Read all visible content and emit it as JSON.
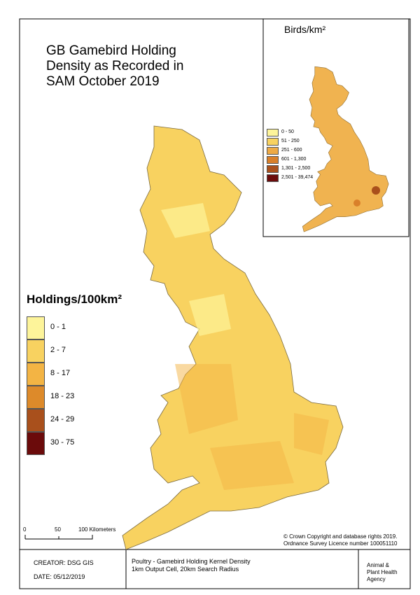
{
  "map": {
    "title": "GB Gamebird Holding Density as Recorded in SAM October 2019",
    "inset": {
      "title": "Birds/km²",
      "legend": [
        {
          "label": "0 - 50",
          "color": "#fdf49a"
        },
        {
          "label": "51 - 250",
          "color": "#f8d260"
        },
        {
          "label": "251 - 600",
          "color": "#eeaa45"
        },
        {
          "label": "601 - 1,300",
          "color": "#d9802a"
        },
        {
          "label": "1,301 - 2,500",
          "color": "#a9501c"
        },
        {
          "label": "2,501 - 39,474",
          "color": "#6b0b0b"
        }
      ]
    },
    "legend": {
      "title": "Holdings/100km²",
      "items": [
        {
          "label": "0 - 1",
          "color": "#fdf49a"
        },
        {
          "label": "2 - 7",
          "color": "#f8d260"
        },
        {
          "label": "8 - 17",
          "color": "#f3b444"
        },
        {
          "label": "18 - 23",
          "color": "#dd8a2a"
        },
        {
          "label": "24 - 29",
          "color": "#a9501c"
        },
        {
          "label": "30 - 75",
          "color": "#6b0b0b"
        }
      ]
    },
    "scale_bar": {
      "labels": [
        "0",
        "50",
        "100 Kilometers"
      ]
    },
    "copyright": [
      "© Crown Copyright and database rights 2019.",
      "Ordnance Survey Licence number 100051110"
    ],
    "footer": {
      "creator": "CREATOR: DSG GIS",
      "date": "DATE: 05/12/2019",
      "description": [
        "Poultry - Gamebird Holding Kernel Density",
        "1km Output Cell, 20km Search Radius"
      ],
      "agency": [
        "Animal &",
        "Plant Health",
        "Agency"
      ]
    }
  }
}
